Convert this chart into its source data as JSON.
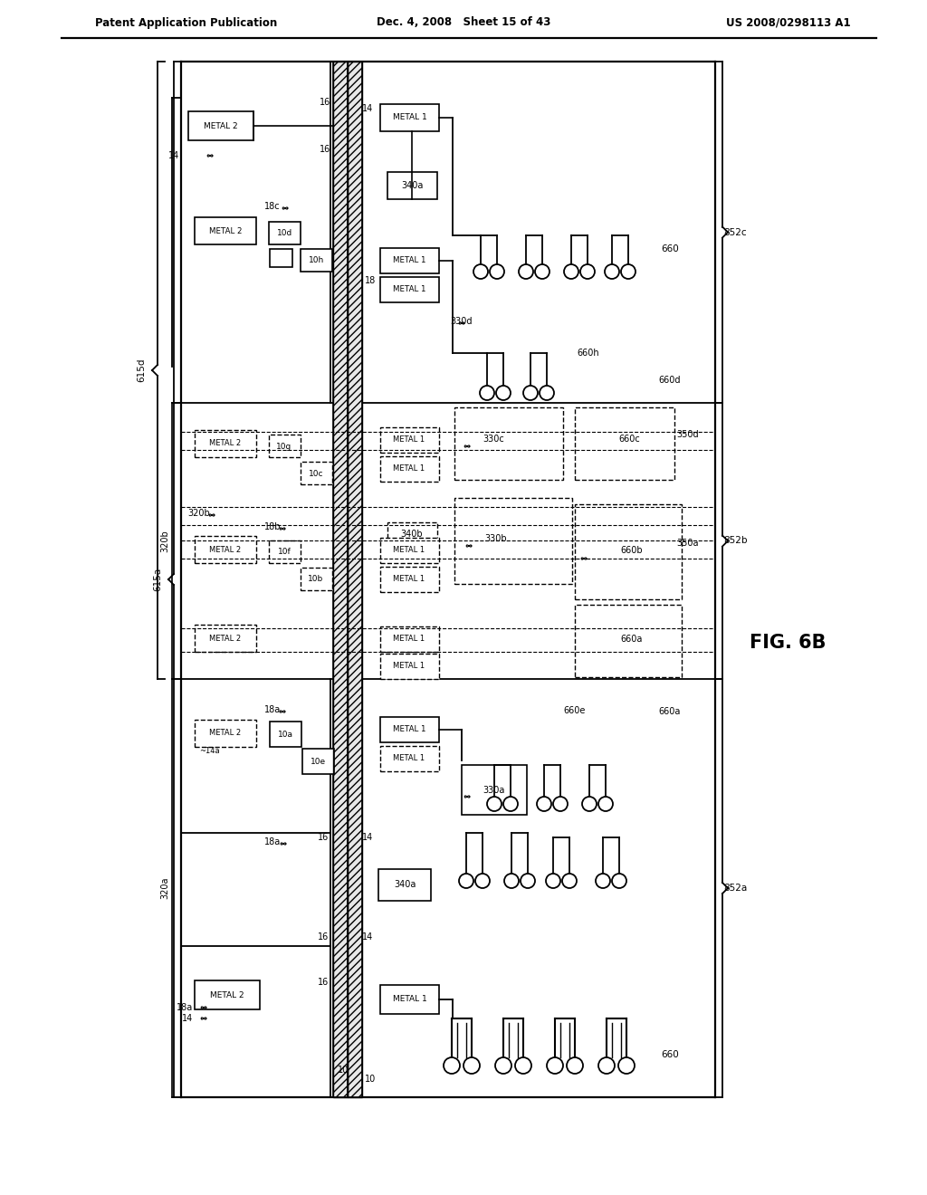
{
  "title_left": "Patent Application Publication",
  "title_mid": "Dec. 4, 2008   Sheet 15 of 43",
  "title_right": "US 2008/0298113 A1",
  "fig_label": "FIG. 6B",
  "bg_color": "#ffffff"
}
